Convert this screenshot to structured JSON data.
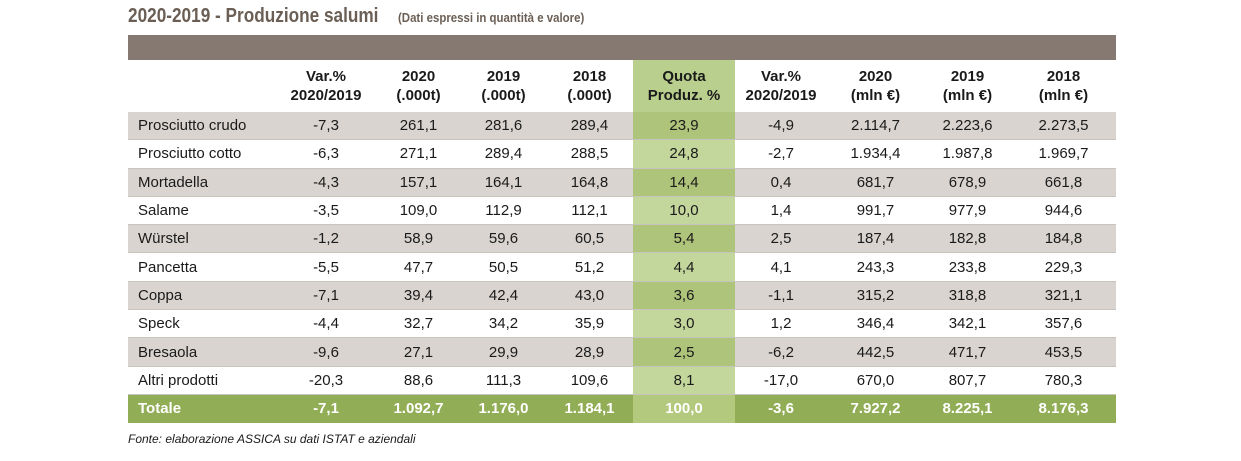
{
  "title": {
    "main": "2020-2019 - Produzione salumi",
    "sub": "(Dati espressi in quantità e valore)"
  },
  "header": {
    "name": "",
    "col1": [
      "Var.%",
      "2020/2019"
    ],
    "col2": [
      "2020",
      "(.000t)"
    ],
    "col3": [
      "2019",
      "(.000t)"
    ],
    "col4": [
      "2018",
      "(.000t)"
    ],
    "col5": [
      "Quota",
      "Produz. %"
    ],
    "col6": [
      "Var.%",
      "2020/2019"
    ],
    "col7": [
      "2020",
      "(mln €)"
    ],
    "col8": [
      "2019",
      "(mln €)"
    ],
    "col9": [
      "2018",
      "(mln €)"
    ]
  },
  "rows": [
    {
      "name": "Prosciutto crudo",
      "c1": "-7,3",
      "c2": "261,1",
      "c3": "281,6",
      "c4": "289,4",
      "c5": "23,9",
      "c6": "-4,9",
      "c7": "2.114,7",
      "c8": "2.223,6",
      "c9": "2.273,5"
    },
    {
      "name": "Prosciutto cotto",
      "c1": "-6,3",
      "c2": "271,1",
      "c3": "289,4",
      "c4": "288,5",
      "c5": "24,8",
      "c6": "-2,7",
      "c7": "1.934,4",
      "c8": "1.987,8",
      "c9": "1.969,7"
    },
    {
      "name": "Mortadella",
      "c1": "-4,3",
      "c2": "157,1",
      "c3": "164,1",
      "c4": "164,8",
      "c5": "14,4",
      "c6": "0,4",
      "c7": "681,7",
      "c8": "678,9",
      "c9": "661,8"
    },
    {
      "name": "Salame",
      "c1": "-3,5",
      "c2": "109,0",
      "c3": "112,9",
      "c4": "112,1",
      "c5": "10,0",
      "c6": "1,4",
      "c7": "991,7",
      "c8": "977,9",
      "c9": "944,6"
    },
    {
      "name": "Würstel",
      "c1": "-1,2",
      "c2": "58,9",
      "c3": "59,6",
      "c4": "60,5",
      "c5": "5,4",
      "c6": "2,5",
      "c7": "187,4",
      "c8": "182,8",
      "c9": "184,8"
    },
    {
      "name": "Pancetta",
      "c1": "-5,5",
      "c2": "47,7",
      "c3": "50,5",
      "c4": "51,2",
      "c5": "4,4",
      "c6": "4,1",
      "c7": "243,3",
      "c8": "233,8",
      "c9": "229,3"
    },
    {
      "name": "Coppa",
      "c1": "-7,1",
      "c2": "39,4",
      "c3": "42,4",
      "c4": "43,0",
      "c5": "3,6",
      "c6": "-1,1",
      "c7": "315,2",
      "c8": "318,8",
      "c9": "321,1"
    },
    {
      "name": "Speck",
      "c1": "-4,4",
      "c2": "32,7",
      "c3": "34,2",
      "c4": "35,9",
      "c5": "3,0",
      "c6": "1,2",
      "c7": "346,4",
      "c8": "342,1",
      "c9": "357,6"
    },
    {
      "name": "Bresaola",
      "c1": "-9,6",
      "c2": "27,1",
      "c3": "29,9",
      "c4": "28,9",
      "c5": "2,5",
      "c6": "-6,2",
      "c7": "442,5",
      "c8": "471,7",
      "c9": "453,5"
    },
    {
      "name": "Altri prodotti",
      "c1": "-20,3",
      "c2": "88,6",
      "c3": "111,3",
      "c4": "109,6",
      "c5": "8,1",
      "c6": "-17,0",
      "c7": "670,0",
      "c8": "807,7",
      "c9": "780,3"
    }
  ],
  "total": {
    "name": "Totale",
    "c1": "-7,1",
    "c2": "1.092,7",
    "c3": "1.176,0",
    "c4": "1.184,1",
    "c5": "100,0",
    "c6": "-3,6",
    "c7": "7.927,2",
    "c8": "8.225,1",
    "c9": "8.176,3"
  },
  "source": "Fonte: elaborazione ASSICA su dati ISTAT e aziendali",
  "colors": {
    "topbar": "#867971",
    "row_shade": "#d9d4d0",
    "quota": "#c3d69b",
    "total": "#91ad55"
  }
}
